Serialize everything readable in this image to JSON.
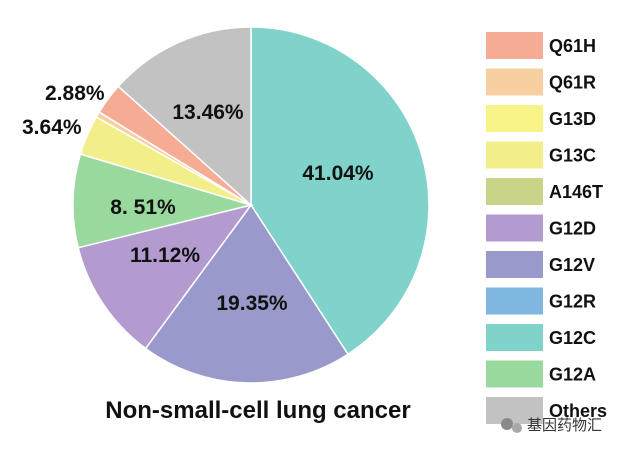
{
  "chart_data": {
    "type": "pie",
    "title": "Non-small-cell lung cancer",
    "slices": [
      {
        "name": "G12C",
        "value": 41.04,
        "label": "41.04%",
        "color": "#7fd3cb"
      },
      {
        "name": "G12V",
        "value": 19.35,
        "label": "19.35%",
        "color": "#9999cc"
      },
      {
        "name": "G12D",
        "value": 11.12,
        "label": "11.12%",
        "color": "#b39bd0"
      },
      {
        "name": "G12A",
        "value": 8.51,
        "label": "8. 51%",
        "color": "#99d99d"
      },
      {
        "name": "G13C",
        "value": 3.64,
        "label": "3.64%",
        "color": "#f2ef8a"
      },
      {
        "name": "G13D",
        "value": 0.01,
        "label": "",
        "color": "#f7f387"
      },
      {
        "name": "A146T",
        "value": 0.0,
        "label": "",
        "color": "#c9d488"
      },
      {
        "name": "Q61R",
        "value": 0.5,
        "label": "",
        "color": "#f8cfa0"
      },
      {
        "name": "Q61H",
        "value": 2.88,
        "label": "2.88%",
        "color": "#f6ab95"
      },
      {
        "name": "Others",
        "value": 13.46,
        "label": "13.46%",
        "color": "#c2c2c2"
      }
    ],
    "legend": [
      {
        "name": "Q61H",
        "color": "#f6ab95"
      },
      {
        "name": "Q61R",
        "color": "#f8cfa0"
      },
      {
        "name": "G13D",
        "color": "#f7f387"
      },
      {
        "name": "G13C",
        "color": "#f2ef8a"
      },
      {
        "name": "A146T",
        "color": "#c9d488"
      },
      {
        "name": "G12D",
        "color": "#b39bd0"
      },
      {
        "name": "G12V",
        "color": "#9999cc"
      },
      {
        "name": "G12R",
        "color": "#7fb7e0"
      },
      {
        "name": "G12C",
        "color": "#7fd3cb"
      },
      {
        "name": "G12A",
        "color": "#99d99d"
      },
      {
        "name": "Others",
        "color": "#c2c2c2"
      }
    ],
    "legend_placement": "right"
  },
  "watermark": {
    "text": "基因药物汇",
    "icon": "wechat-icon"
  }
}
